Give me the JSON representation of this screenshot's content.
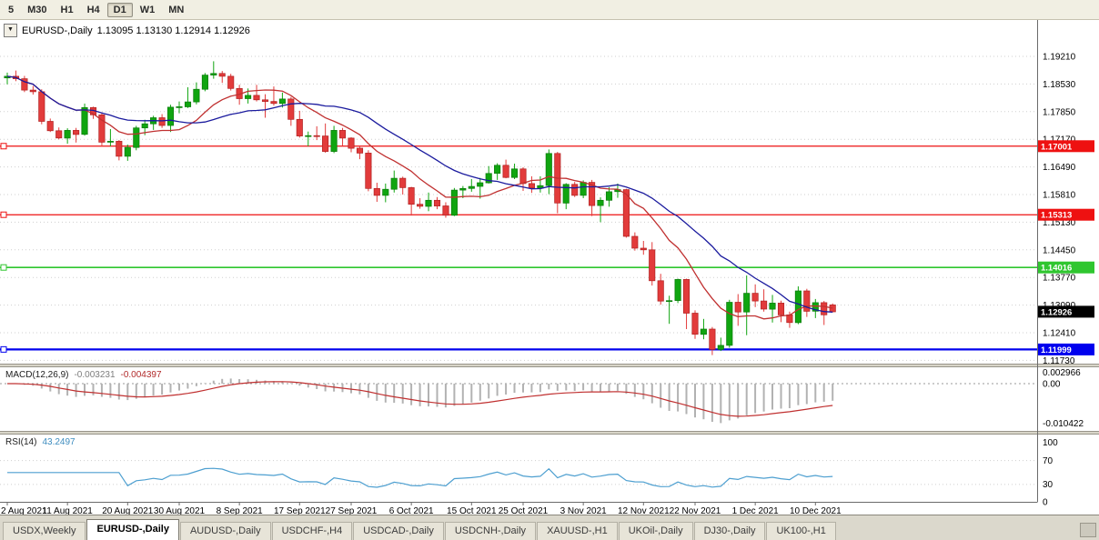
{
  "toolbar": {
    "periods": [
      {
        "label": "5",
        "active": false
      },
      {
        "label": "M30",
        "active": false
      },
      {
        "label": "H1",
        "active": false
      },
      {
        "label": "H4",
        "active": false
      },
      {
        "label": "D1",
        "active": true
      },
      {
        "label": "W1",
        "active": false
      },
      {
        "label": "MN",
        "active": false
      }
    ]
  },
  "icons": {
    "symbol_dropdown": "▼"
  },
  "chart_data": {
    "type": "candlestick",
    "symbol_label": "EURUSD-,Daily",
    "ohlc_text": "1.13095 1.13130 1.12914 1.12926",
    "current": {
      "open": 1.13095,
      "high": 1.1313,
      "low": 1.12914,
      "close": 1.12926
    },
    "current_price": 1.12926,
    "current_price_label": "1.12926",
    "y_axis": {
      "labels": [
        "1.19210",
        "1.18530",
        "1.17850",
        "1.17170",
        "1.16490",
        "1.15810",
        "1.15130",
        "1.14450",
        "1.13770",
        "1.13090",
        "1.12410",
        "1.11730"
      ]
    },
    "x_labels": [
      {
        "index": 0,
        "text": "2 Aug 2021"
      },
      {
        "index": 7,
        "text": "11 Aug 2021"
      },
      {
        "index": 14,
        "text": "20 Aug 2021"
      },
      {
        "index": 20,
        "text": "30 Aug 2021"
      },
      {
        "index": 27,
        "text": "8 Sep 2021"
      },
      {
        "index": 34,
        "text": "17 Sep 2021"
      },
      {
        "index": 40,
        "text": "27 Sep 2021"
      },
      {
        "index": 47,
        "text": "6 Oct 2021"
      },
      {
        "index": 54,
        "text": "15 Oct 2021"
      },
      {
        "index": 60,
        "text": "25 Oct 2021"
      },
      {
        "index": 67,
        "text": "3 Nov 2021"
      },
      {
        "index": 74,
        "text": "12 Nov 2021"
      },
      {
        "index": 80,
        "text": "22 Nov 2021"
      },
      {
        "index": 87,
        "text": "1 Dec 2021"
      },
      {
        "index": 94,
        "text": "10 Dec 2021"
      }
    ],
    "hlines": [
      {
        "price": 1.17001,
        "label": "1.17001",
        "color": "#ee1111",
        "width": 1.2
      },
      {
        "price": 1.15313,
        "label": "1.15313",
        "color": "#ee1111",
        "width": 1.2
      },
      {
        "price": 1.14016,
        "label": "1.14016",
        "color": "#2fc62f",
        "width": 1.6
      },
      {
        "price": 1.11999,
        "label": "1.11999",
        "color": "#0000ee",
        "width": 2.2
      }
    ],
    "moving_averages": [
      {
        "period": 10,
        "color": "#c03030"
      },
      {
        "period": 20,
        "color": "#1b1b9e"
      }
    ],
    "colors": {
      "up": "#10a510",
      "up_dark": "#0a7a0a",
      "down": "#e23b3b",
      "down_dark": "#b02020",
      "macd_hist": "#b2b2b2",
      "macd_signal": "#c03030",
      "rsi_line": "#4d9fd0"
    },
    "indicators": {
      "macd": {
        "label": "MACD(12,26,9)",
        "value_main": "-0.003231",
        "value_signal": "-0.004397",
        "params": [
          12,
          26,
          9
        ],
        "axis": [
          "0.002966",
          "0.00",
          "-0.010422"
        ]
      },
      "rsi": {
        "label": "RSI(14)",
        "value": "43.2497",
        "period": 14,
        "axis": [
          "100",
          "70",
          "30",
          "0"
        ],
        "levels": [
          70,
          30
        ]
      }
    },
    "candles": [
      [
        1.1868,
        1.1881,
        1.1852,
        1.1872
      ],
      [
        1.1872,
        1.1886,
        1.186,
        1.1866
      ],
      [
        1.1866,
        1.1873,
        1.1833,
        1.1838
      ],
      [
        1.1838,
        1.1848,
        1.1827,
        1.1834
      ],
      [
        1.1834,
        1.184,
        1.1754,
        1.1761
      ],
      [
        1.1761,
        1.1768,
        1.1735,
        1.1738
      ],
      [
        1.1738,
        1.1746,
        1.1717,
        1.172
      ],
      [
        1.172,
        1.1744,
        1.1706,
        1.1739
      ],
      [
        1.1739,
        1.1745,
        1.1709,
        1.1729
      ],
      [
        1.1729,
        1.1805,
        1.1726,
        1.1795
      ],
      [
        1.1795,
        1.1797,
        1.1767,
        1.1777
      ],
      [
        1.1777,
        1.1783,
        1.1702,
        1.171
      ],
      [
        1.171,
        1.1742,
        1.17,
        1.1712
      ],
      [
        1.1712,
        1.1715,
        1.1665,
        1.1675
      ],
      [
        1.1675,
        1.1704,
        1.1664,
        1.1697
      ],
      [
        1.1697,
        1.175,
        1.169,
        1.1745
      ],
      [
        1.1745,
        1.1765,
        1.1727,
        1.1755
      ],
      [
        1.1755,
        1.1775,
        1.174,
        1.177
      ],
      [
        1.177,
        1.1779,
        1.1745,
        1.1751
      ],
      [
        1.1751,
        1.1802,
        1.1735,
        1.1796
      ],
      [
        1.1796,
        1.181,
        1.1781,
        1.1797
      ],
      [
        1.1797,
        1.1845,
        1.1794,
        1.1809
      ],
      [
        1.1809,
        1.1857,
        1.1803,
        1.184
      ],
      [
        1.184,
        1.188,
        1.1835,
        1.1875
      ],
      [
        1.1875,
        1.1909,
        1.1866,
        1.1879
      ],
      [
        1.1879,
        1.1885,
        1.1856,
        1.1872
      ],
      [
        1.1872,
        1.1878,
        1.1837,
        1.1842
      ],
      [
        1.1842,
        1.1851,
        1.1802,
        1.1817
      ],
      [
        1.1817,
        1.1842,
        1.1805,
        1.1825
      ],
      [
        1.1825,
        1.1851,
        1.181,
        1.1814
      ],
      [
        1.1814,
        1.1828,
        1.177,
        1.181
      ],
      [
        1.181,
        1.1847,
        1.18,
        1.1805
      ],
      [
        1.1805,
        1.1832,
        1.1795,
        1.1816
      ],
      [
        1.1816,
        1.1821,
        1.175,
        1.1766
      ],
      [
        1.1766,
        1.1787,
        1.1721,
        1.1725
      ],
      [
        1.1725,
        1.1736,
        1.17,
        1.1726
      ],
      [
        1.1726,
        1.1749,
        1.1715,
        1.1725
      ],
      [
        1.1725,
        1.1756,
        1.1684,
        1.1687
      ],
      [
        1.1687,
        1.175,
        1.1683,
        1.1739
      ],
      [
        1.1739,
        1.1745,
        1.1701,
        1.172
      ],
      [
        1.172,
        1.1722,
        1.1685,
        1.1695
      ],
      [
        1.1695,
        1.17,
        1.1668,
        1.1683
      ],
      [
        1.1683,
        1.169,
        1.1589,
        1.1596
      ],
      [
        1.1596,
        1.161,
        1.1563,
        1.1579
      ],
      [
        1.1579,
        1.1608,
        1.1562,
        1.1594
      ],
      [
        1.1594,
        1.164,
        1.1586,
        1.1621
      ],
      [
        1.1621,
        1.1625,
        1.1581,
        1.1598
      ],
      [
        1.1598,
        1.16,
        1.1529,
        1.1557
      ],
      [
        1.1557,
        1.1572,
        1.1546,
        1.1552
      ],
      [
        1.1552,
        1.1586,
        1.154,
        1.1567
      ],
      [
        1.1567,
        1.1575,
        1.1545,
        1.1553
      ],
      [
        1.1553,
        1.1562,
        1.1524,
        1.153
      ],
      [
        1.153,
        1.1597,
        1.1528,
        1.1592
      ],
      [
        1.1592,
        1.1602,
        1.1572,
        1.1596
      ],
      [
        1.1596,
        1.1619,
        1.1588,
        1.1601
      ],
      [
        1.1601,
        1.1622,
        1.1571,
        1.161
      ],
      [
        1.161,
        1.1651,
        1.1608,
        1.1633
      ],
      [
        1.1633,
        1.1658,
        1.1617,
        1.1653
      ],
      [
        1.1653,
        1.1667,
        1.1621,
        1.1623
      ],
      [
        1.1623,
        1.1657,
        1.1619,
        1.1644
      ],
      [
        1.1644,
        1.1648,
        1.159,
        1.1608
      ],
      [
        1.1608,
        1.1626,
        1.1585,
        1.1597
      ],
      [
        1.1597,
        1.1626,
        1.1586,
        1.1603
      ],
      [
        1.1603,
        1.1692,
        1.1582,
        1.1682
      ],
      [
        1.1682,
        1.1686,
        1.1535,
        1.156
      ],
      [
        1.156,
        1.1609,
        1.1545,
        1.1606
      ],
      [
        1.1606,
        1.1612,
        1.1575,
        1.1579
      ],
      [
        1.1579,
        1.1616,
        1.1572,
        1.1611
      ],
      [
        1.1611,
        1.1617,
        1.1528,
        1.1554
      ],
      [
        1.1554,
        1.1574,
        1.1513,
        1.1567
      ],
      [
        1.1567,
        1.1599,
        1.1551,
        1.1588
      ],
      [
        1.1588,
        1.1608,
        1.1573,
        1.1593
      ],
      [
        1.1593,
        1.1595,
        1.1475,
        1.1478
      ],
      [
        1.1478,
        1.1488,
        1.1443,
        1.1449
      ],
      [
        1.1449,
        1.1467,
        1.1433,
        1.1445
      ],
      [
        1.1445,
        1.1464,
        1.1357,
        1.1369
      ],
      [
        1.1369,
        1.1386,
        1.131,
        1.1319
      ],
      [
        1.1319,
        1.1332,
        1.1263,
        1.132
      ],
      [
        1.132,
        1.1374,
        1.1314,
        1.1372
      ],
      [
        1.1372,
        1.1374,
        1.125,
        1.1289
      ],
      [
        1.1289,
        1.1296,
        1.1226,
        1.1237
      ],
      [
        1.1237,
        1.1275,
        1.1225,
        1.125
      ],
      [
        1.125,
        1.1255,
        1.1186,
        1.12
      ],
      [
        1.12,
        1.1229,
        1.1196,
        1.121
      ],
      [
        1.121,
        1.1322,
        1.1204,
        1.1316
      ],
      [
        1.1316,
        1.1336,
        1.1258,
        1.1292
      ],
      [
        1.1292,
        1.1382,
        1.1235,
        1.1338
      ],
      [
        1.1338,
        1.136,
        1.1304,
        1.1319
      ],
      [
        1.1319,
        1.1348,
        1.1293,
        1.1299
      ],
      [
        1.1299,
        1.1334,
        1.1266,
        1.1314
      ],
      [
        1.1314,
        1.132,
        1.1267,
        1.1285
      ],
      [
        1.1285,
        1.1293,
        1.1253,
        1.1266
      ],
      [
        1.1266,
        1.1355,
        1.1262,
        1.1344
      ],
      [
        1.1344,
        1.1349,
        1.128,
        1.1294
      ],
      [
        1.1294,
        1.1324,
        1.1277,
        1.1315
      ],
      [
        1.1315,
        1.1319,
        1.126,
        1.1285
      ],
      [
        1.13095,
        1.1313,
        1.12914,
        1.12926
      ]
    ]
  },
  "tabs": [
    {
      "label": "USDX,Weekly",
      "active": false
    },
    {
      "label": "EURUSD-,Daily",
      "active": true
    },
    {
      "label": "AUDUSD-,Daily",
      "active": false
    },
    {
      "label": "USDCHF-,H4",
      "active": false
    },
    {
      "label": "USDCAD-,Daily",
      "active": false
    },
    {
      "label": "USDCNH-,Daily",
      "active": false
    },
    {
      "label": "XAUUSD-,H1",
      "active": false
    },
    {
      "label": "UKOil-,Daily",
      "active": false
    },
    {
      "label": "DJ30-,Daily",
      "active": false
    },
    {
      "label": "UK100-,H1",
      "active": false
    }
  ]
}
